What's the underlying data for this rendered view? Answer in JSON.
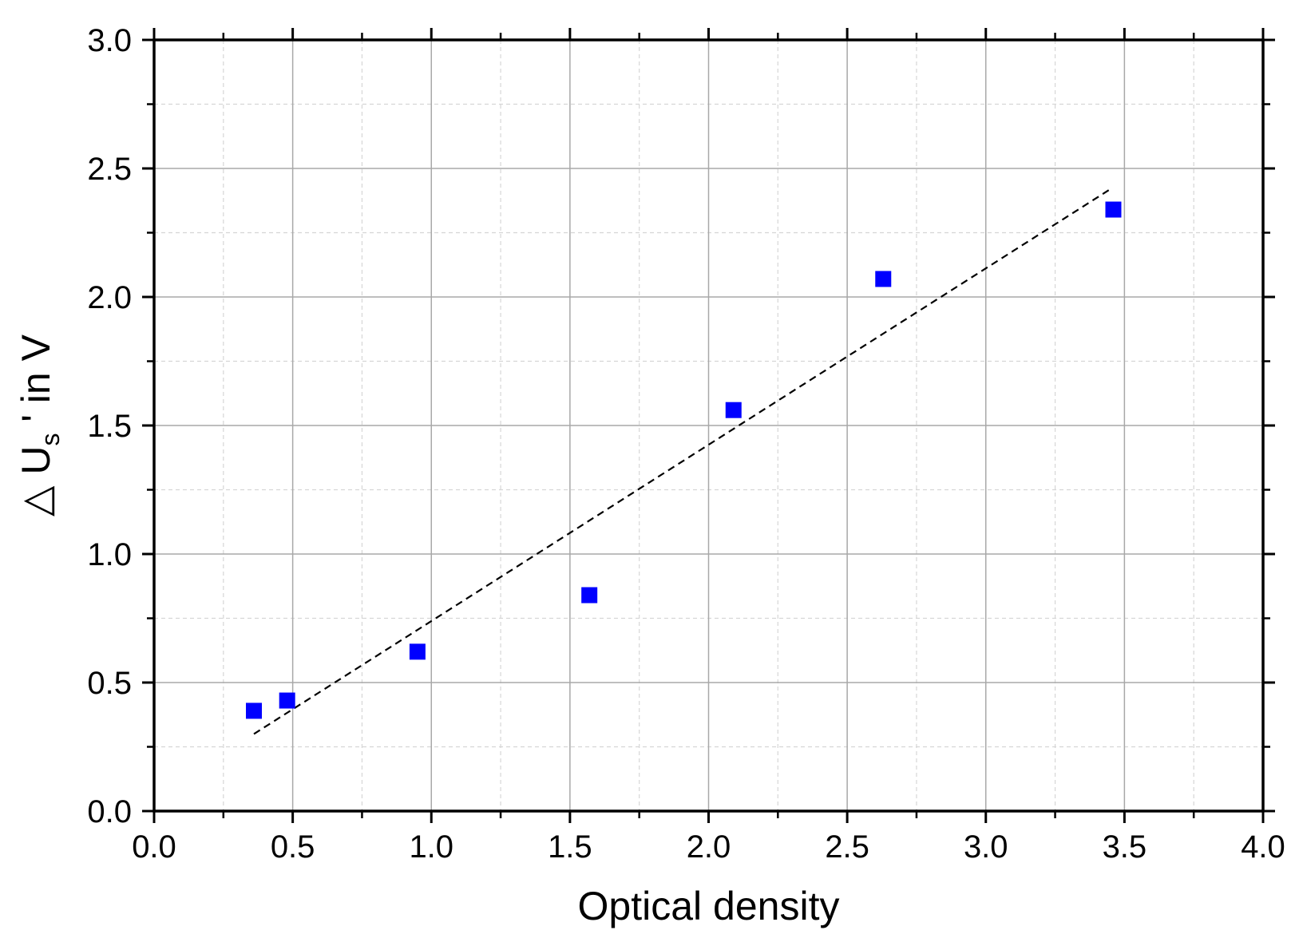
{
  "chart_data": {
    "type": "scatter",
    "xlabel": "Optical density",
    "ylabel": {
      "prefix": "△ U",
      "subscript": "s",
      "suffix": " ' in V"
    },
    "xlim": [
      0.0,
      4.0
    ],
    "ylim": [
      0.0,
      3.0
    ],
    "x_ticks": [
      "0.0",
      "0.5",
      "1.0",
      "1.5",
      "2.0",
      "2.5",
      "3.0",
      "3.5",
      "4.0"
    ],
    "y_ticks": [
      "0.0",
      "0.5",
      "1.0",
      "1.5",
      "2.0",
      "2.5",
      "3.0"
    ],
    "grid": {
      "major": true,
      "minor": true
    },
    "series": [
      {
        "marker": "square",
        "color": "#0000ff",
        "x": [
          0.36,
          0.48,
          0.95,
          1.57,
          2.09,
          2.63,
          3.46
        ],
        "y": [
          0.39,
          0.43,
          0.62,
          0.84,
          1.56,
          2.07,
          2.34
        ]
      }
    ],
    "fit_line": {
      "style": "dashed",
      "color": "#000000",
      "x": [
        0.36,
        3.45
      ],
      "y": [
        0.3,
        2.42
      ]
    }
  }
}
